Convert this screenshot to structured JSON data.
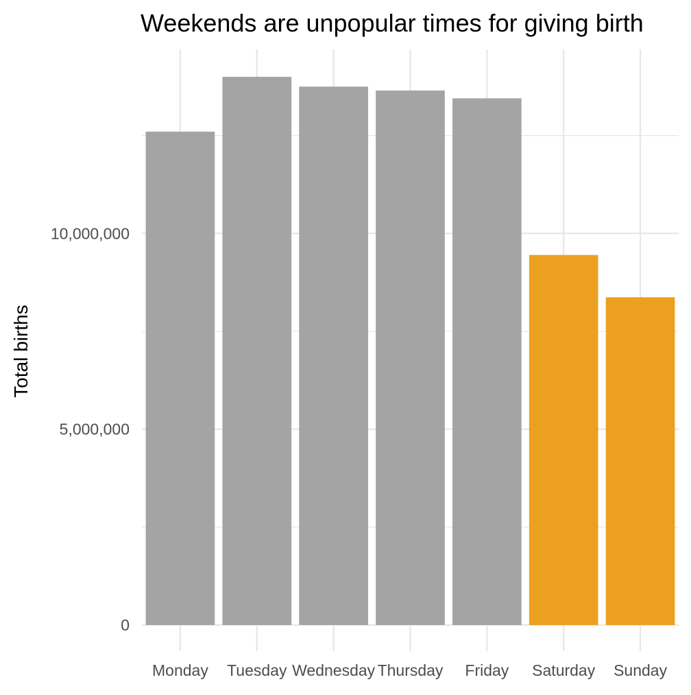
{
  "chart_data": {
    "type": "bar",
    "title": "Weekends are unpopular times for giving birth",
    "xlabel": "",
    "ylabel": "Total births",
    "categories": [
      "Monday",
      "Tuesday",
      "Wednesday",
      "Thursday",
      "Friday",
      "Saturday",
      "Sunday"
    ],
    "values": [
      12600000,
      14000000,
      13750000,
      13650000,
      13450000,
      9450000,
      8370000
    ],
    "highlight": [
      false,
      false,
      false,
      false,
      false,
      true,
      true
    ],
    "ylim": [
      0,
      14700000
    ],
    "yticks": [
      0,
      5000000,
      10000000
    ],
    "ytick_labels": [
      "0",
      "5,000,000",
      "10,000,000"
    ],
    "colors": {
      "default": "#a4a4a4",
      "highlight": "#eca020",
      "grid": "#e6e6e6"
    },
    "grid": true,
    "legend": "none"
  }
}
